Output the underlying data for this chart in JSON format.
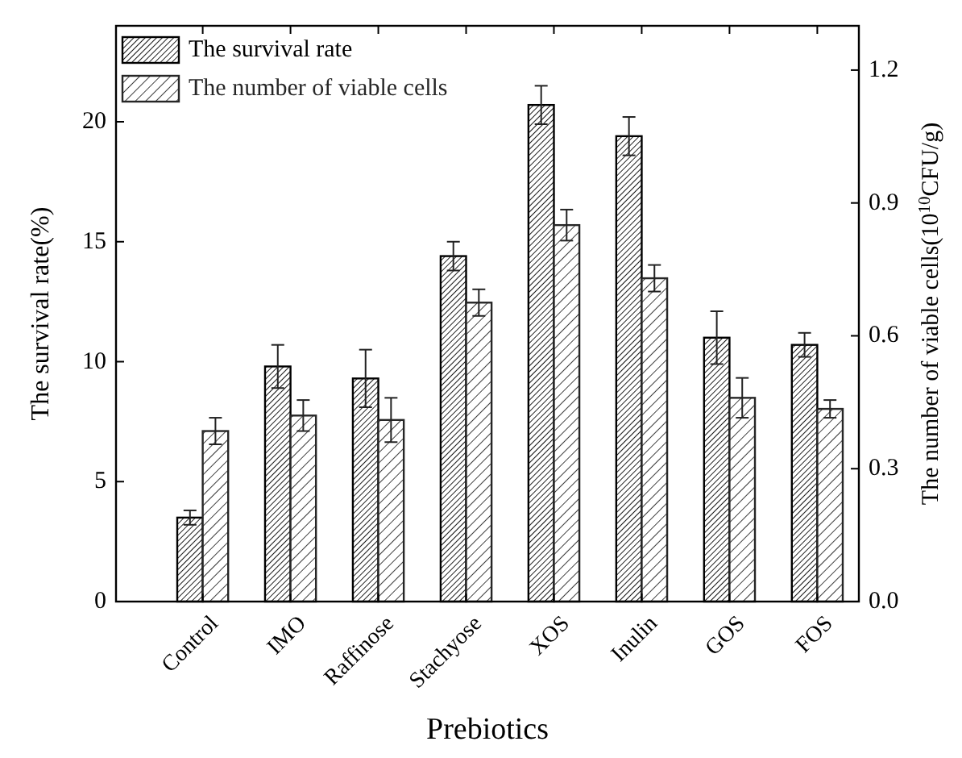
{
  "chart_data": {
    "type": "bar",
    "xlabel": "Prebiotics",
    "ylabel": "The survival rate(%)",
    "y2label": "The number of viable cells(10$^{10}$CFU/g)",
    "categories": [
      "Control",
      "IMO",
      "Raffinose",
      "Stachyose",
      "XOS",
      "Inulin",
      "GOS",
      "FOS"
    ],
    "series": [
      {
        "name": "The survival rate",
        "color": "#000000",
        "values": [
          3.5,
          9.8,
          9.3,
          14.4,
          20.7,
          19.4,
          11.0,
          10.7
        ],
        "errors": [
          0.3,
          0.9,
          1.2,
          0.6,
          0.8,
          0.8,
          1.1,
          0.5
        ]
      },
      {
        "name": "The number of viable cells",
        "color": "#262626",
        "axis": "y2",
        "values": [
          0.385,
          0.42,
          0.41,
          0.675,
          0.85,
          0.73,
          0.46,
          0.435
        ],
        "errors": [
          0.03,
          0.035,
          0.05,
          0.03,
          0.035,
          0.03,
          0.045,
          0.02
        ]
      }
    ],
    "ylim": [
      0,
      24
    ],
    "yticks": [
      0,
      5,
      10,
      15,
      20
    ],
    "y2lim": [
      0,
      1.3
    ],
    "y2ticks": [
      {
        "value": 0,
        "label": "0.0"
      },
      {
        "value": 0.3,
        "label": "0.3"
      },
      {
        "value": 0.6,
        "label": "0.6"
      },
      {
        "value": 0.9,
        "label": "0.9"
      },
      {
        "value": 1.2,
        "label": "1.2"
      }
    ],
    "legend": "top left",
    "grid": false
  }
}
